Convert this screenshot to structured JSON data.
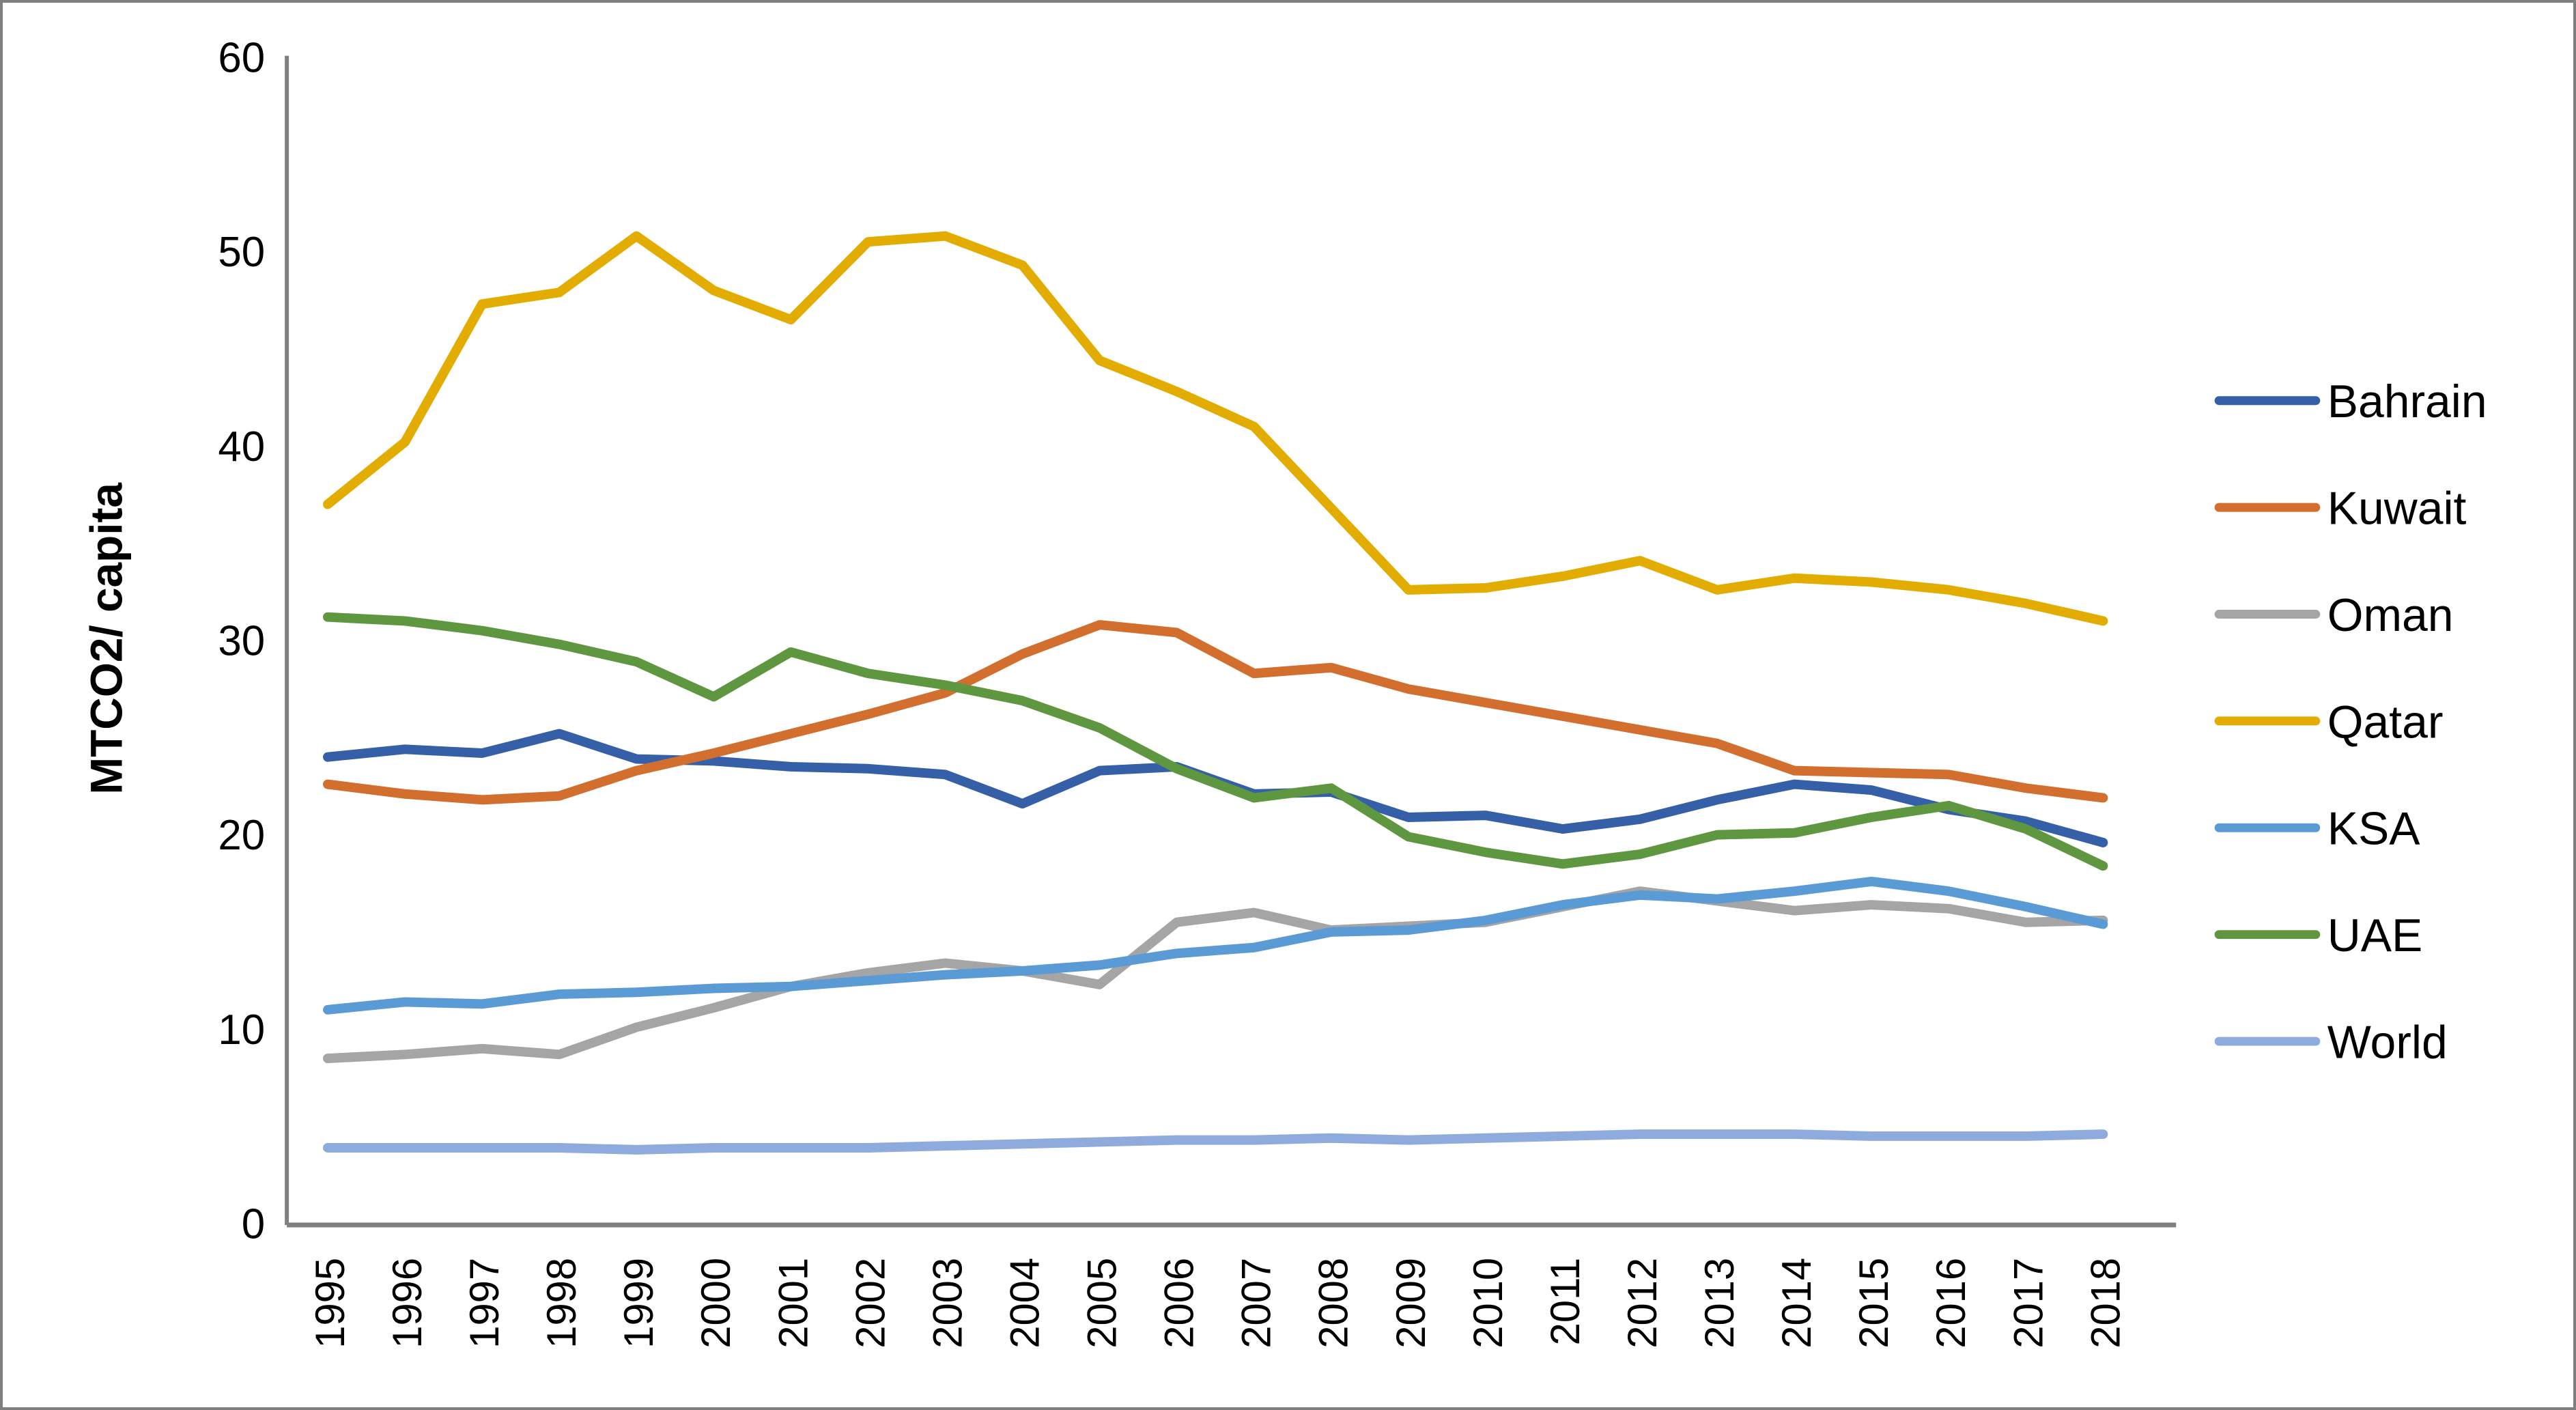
{
  "chart_data": {
    "type": "line",
    "title": "",
    "xlabel": "",
    "ylabel": "MTCO2/ capita",
    "ylim": [
      0,
      60
    ],
    "yticks": [
      0,
      10,
      20,
      30,
      40,
      50,
      60
    ],
    "grid": false,
    "legend_position": "right",
    "categories": [
      "1995",
      "1996",
      "1997",
      "1998",
      "1999",
      "2000",
      "2001",
      "2002",
      "2003",
      "2004",
      "2005",
      "2006",
      "2007",
      "2008",
      "2009",
      "2010",
      "2011",
      "2012",
      "2013",
      "2014",
      "2015",
      "2016",
      "2017",
      "2018"
    ],
    "series": [
      {
        "name": "Bahrain",
        "color": "#3560A8",
        "values": [
          24.0,
          24.4,
          24.2,
          25.2,
          23.9,
          23.8,
          23.5,
          23.4,
          23.1,
          21.6,
          23.3,
          23.5,
          22.1,
          22.2,
          20.9,
          21.0,
          20.3,
          20.8,
          21.8,
          22.6,
          22.3,
          21.3,
          20.7,
          19.6
        ]
      },
      {
        "name": "Kuwait",
        "color": "#D26E2E",
        "values": [
          22.6,
          22.1,
          21.8,
          22.0,
          23.3,
          24.2,
          25.2,
          26.2,
          27.3,
          29.3,
          30.8,
          30.4,
          28.3,
          28.6,
          27.5,
          26.8,
          26.1,
          25.4,
          24.7,
          23.3,
          23.2,
          23.1,
          22.4,
          21.9
        ]
      },
      {
        "name": "Oman",
        "color": "#A5A5A5",
        "values": [
          8.5,
          8.7,
          9.0,
          8.7,
          10.1,
          11.1,
          12.2,
          12.9,
          13.4,
          13.0,
          12.3,
          15.5,
          16.0,
          15.1,
          15.3,
          15.5,
          16.3,
          17.1,
          16.6,
          16.1,
          16.4,
          16.2,
          15.5,
          15.6
        ]
      },
      {
        "name": "Qatar",
        "color": "#E2AC00",
        "values": [
          37.0,
          40.2,
          47.3,
          47.9,
          50.8,
          48.0,
          46.5,
          50.5,
          50.8,
          49.3,
          44.4,
          42.8,
          41.0,
          36.8,
          32.6,
          32.7,
          33.3,
          34.1,
          32.6,
          33.2,
          33.0,
          32.6,
          31.9,
          31.0
        ]
      },
      {
        "name": "KSA",
        "color": "#5B9BD5",
        "values": [
          11.0,
          11.4,
          11.3,
          11.8,
          11.9,
          12.1,
          12.2,
          12.5,
          12.8,
          13.0,
          13.3,
          13.9,
          14.2,
          15.0,
          15.1,
          15.6,
          16.4,
          16.9,
          16.7,
          17.1,
          17.6,
          17.1,
          16.3,
          15.4
        ]
      },
      {
        "name": "UAE",
        "color": "#5F9741",
        "values": [
          31.2,
          31.0,
          30.5,
          29.8,
          28.9,
          27.1,
          29.4,
          28.3,
          27.7,
          26.9,
          25.5,
          23.4,
          21.9,
          22.4,
          19.9,
          19.1,
          18.5,
          19.0,
          20.0,
          20.1,
          20.9,
          21.5,
          20.3,
          18.4
        ]
      },
      {
        "name": "World",
        "color": "#8FAADC",
        "values": [
          3.9,
          3.9,
          3.9,
          3.9,
          3.8,
          3.9,
          3.9,
          3.9,
          4.0,
          4.1,
          4.2,
          4.3,
          4.3,
          4.4,
          4.3,
          4.4,
          4.5,
          4.6,
          4.6,
          4.6,
          4.5,
          4.5,
          4.5,
          4.6
        ]
      }
    ]
  },
  "style": {
    "axis_line_color": "#808080",
    "label_color": "#000000",
    "frame_border_color": "#7f7f7f",
    "background": "#ffffff"
  }
}
